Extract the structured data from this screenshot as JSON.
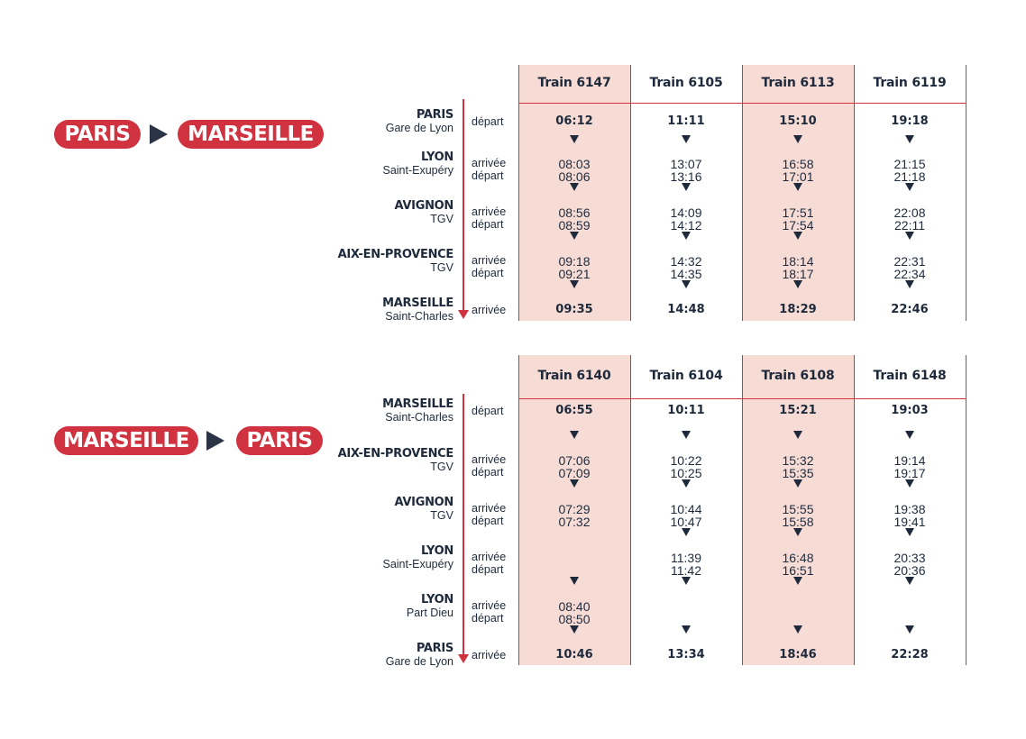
{
  "colors": {
    "accent": "#d0323f",
    "highlight": "#f7dcd6",
    "text": "#1e2a3b"
  },
  "tables": [
    {
      "route": {
        "from": "PARIS",
        "to": "MARSEILLE"
      },
      "trains": [
        "Train 6147",
        "Train 6105",
        "Train 6113",
        "Train 6119"
      ],
      "stops": [
        {
          "name": "PARIS",
          "sub": "Gare de Lyon",
          "kinds": [
            "départ"
          ],
          "times": [
            [
              "06:12"
            ],
            [
              "11:11"
            ],
            [
              "15:10"
            ],
            [
              "19:18"
            ]
          ]
        },
        {
          "name": "LYON",
          "sub": "Saint-Exupéry",
          "kinds": [
            "arrivée",
            "départ"
          ],
          "times": [
            [
              "08:03",
              "08:06"
            ],
            [
              "13:07",
              "13:16"
            ],
            [
              "16:58",
              "17:01"
            ],
            [
              "21:15",
              "21:18"
            ]
          ]
        },
        {
          "name": "AVIGNON",
          "sub": "TGV",
          "kinds": [
            "arrivée",
            "départ"
          ],
          "times": [
            [
              "08:56",
              "08:59"
            ],
            [
              "14:09",
              "14:12"
            ],
            [
              "17:51",
              "17:54"
            ],
            [
              "22:08",
              "22:11"
            ]
          ]
        },
        {
          "name": "AIX-EN-PROVENCE",
          "sub": "TGV",
          "kinds": [
            "arrivée",
            "départ"
          ],
          "times": [
            [
              "09:18",
              "09:21"
            ],
            [
              "14:32",
              "14:35"
            ],
            [
              "18:14",
              "18:17"
            ],
            [
              "22:31",
              "22:34"
            ]
          ]
        },
        {
          "name": "MARSEILLE",
          "sub": "Saint-Charles",
          "kinds": [
            "arrivée"
          ],
          "times": [
            [
              "09:35"
            ],
            [
              "14:48"
            ],
            [
              "18:29"
            ],
            [
              "22:46"
            ]
          ]
        }
      ]
    },
    {
      "route": {
        "from": "MARSEILLE",
        "to": "PARIS"
      },
      "trains": [
        "Train 6140",
        "Train 6104",
        "Train 6108",
        "Train 6148"
      ],
      "stops": [
        {
          "name": "MARSEILLE",
          "sub": "Saint-Charles",
          "kinds": [
            "départ"
          ],
          "times": [
            [
              "06:55"
            ],
            [
              "10:11"
            ],
            [
              "15:21"
            ],
            [
              "19:03"
            ]
          ]
        },
        {
          "name": "AIX-EN-PROVENCE",
          "sub": "TGV",
          "kinds": [
            "arrivée",
            "départ"
          ],
          "times": [
            [
              "07:06",
              "07:09"
            ],
            [
              "10:22",
              "10:25"
            ],
            [
              "15:32",
              "15:35"
            ],
            [
              "19:14",
              "19:17"
            ]
          ]
        },
        {
          "name": "AVIGNON",
          "sub": "TGV",
          "kinds": [
            "arrivée",
            "départ"
          ],
          "times": [
            [
              "07:29",
              "07:32"
            ],
            [
              "10:44",
              "10:47"
            ],
            [
              "15:55",
              "15:58"
            ],
            [
              "19:38",
              "19:41"
            ]
          ]
        },
        {
          "name": "LYON",
          "sub": "Saint-Exupéry",
          "kinds": [
            "arrivée",
            "départ"
          ],
          "times": [
            [],
            [
              "11:39",
              "11:42"
            ],
            [
              "16:48",
              "16:51"
            ],
            [
              "20:33",
              "20:36"
            ]
          ]
        },
        {
          "name": "LYON",
          "sub": "Part Dieu",
          "kinds": [
            "arrivée",
            "départ"
          ],
          "times": [
            [
              "08:40",
              "08:50"
            ],
            [],
            [],
            []
          ]
        },
        {
          "name": "PARIS",
          "sub": "Gare de Lyon",
          "kinds": [
            "arrivée"
          ],
          "times": [
            [
              "10:46"
            ],
            [
              "13:34"
            ],
            [
              "18:46"
            ],
            [
              "22:28"
            ]
          ]
        }
      ]
    }
  ]
}
